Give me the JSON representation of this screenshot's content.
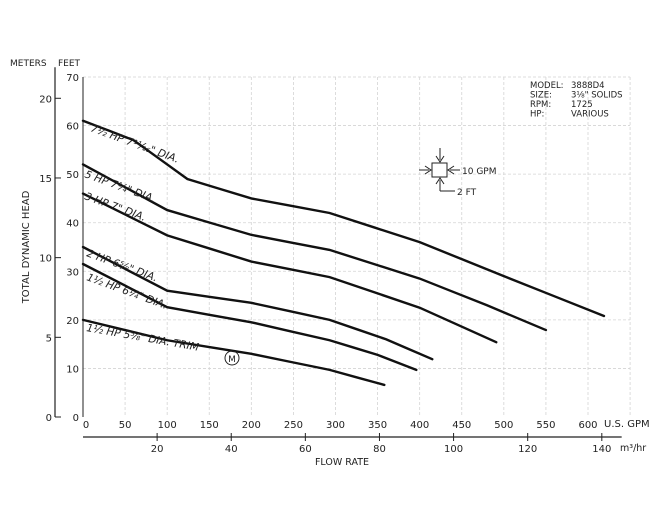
{
  "chart_data": {
    "type": "line",
    "title": "",
    "xlabel": "FLOW RATE",
    "ylabel": "TOTAL DYNAMIC HEAD",
    "x_unit_primary": "U.S. GPM",
    "x_unit_secondary": "m³/hr",
    "y_unit_primary": "FEET",
    "y_unit_secondary": "METERS",
    "xlim": [
      0,
      650
    ],
    "ylim": [
      0,
      70
    ],
    "x_ticks": [
      "0",
      "50",
      "100",
      "150",
      "200",
      "250",
      "300",
      "350",
      "400",
      "450",
      "500",
      "550",
      "600"
    ],
    "x2_ticks": [
      "20",
      "40",
      "60",
      "80",
      "100",
      "120",
      "140"
    ],
    "y_ticks": [
      "0",
      "10",
      "20",
      "30",
      "40",
      "50",
      "60",
      "70"
    ],
    "y2_ticks": [
      "0",
      "5",
      "10",
      "15",
      "20"
    ],
    "grid": true,
    "info": [
      {
        "label": "MODEL:",
        "value": "3888D4"
      },
      {
        "label": "SIZE:",
        "value": "3⅛\" SOLIDS"
      },
      {
        "label": "RPM:",
        "value": "1725"
      },
      {
        "label": "HP:",
        "value": "VARIOUS"
      }
    ],
    "scale_key": {
      "flow": "10 GPM",
      "head": "2 FT"
    },
    "series": [
      {
        "name": "7½ HP 7¹¹⁄₁₆\" DIA.",
        "x": [
          0,
          60,
          124,
          200,
          293,
          400,
          500,
          619
        ],
        "y": [
          61,
          57,
          49,
          45,
          42,
          36,
          29,
          20.8
        ]
      },
      {
        "name": "5 HP 7¼\" DIA.",
        "x": [
          0,
          100,
          200,
          293,
          400,
          480,
          550
        ],
        "y": [
          52,
          42.6,
          37.5,
          34.4,
          28.5,
          23,
          17.9
        ]
      },
      {
        "name": "3 HP 7\" DIA.",
        "x": [
          0,
          100,
          200,
          293,
          400,
          491
        ],
        "y": [
          46,
          37.4,
          32,
          28.8,
          22.5,
          15.4
        ]
      },
      {
        "name": "2 HP 6⅝\" DIA.",
        "x": [
          0,
          100,
          200,
          293,
          360,
          415
        ],
        "y": [
          35,
          26,
          23.5,
          20,
          16,
          11.9
        ]
      },
      {
        "name": "1½ HP 6¼\" DIA.",
        "x": [
          0,
          100,
          200,
          293,
          350,
          396
        ],
        "y": [
          31.5,
          22.6,
          19.5,
          15.8,
          12.8,
          9.7
        ]
      },
      {
        "name": "1½ HP 5⅝\" DIA. TRIM",
        "x": [
          0,
          100,
          200,
          293,
          358
        ],
        "y": [
          20,
          15.8,
          13,
          9.7,
          6.6
        ]
      }
    ],
    "trim_marker": "M"
  }
}
